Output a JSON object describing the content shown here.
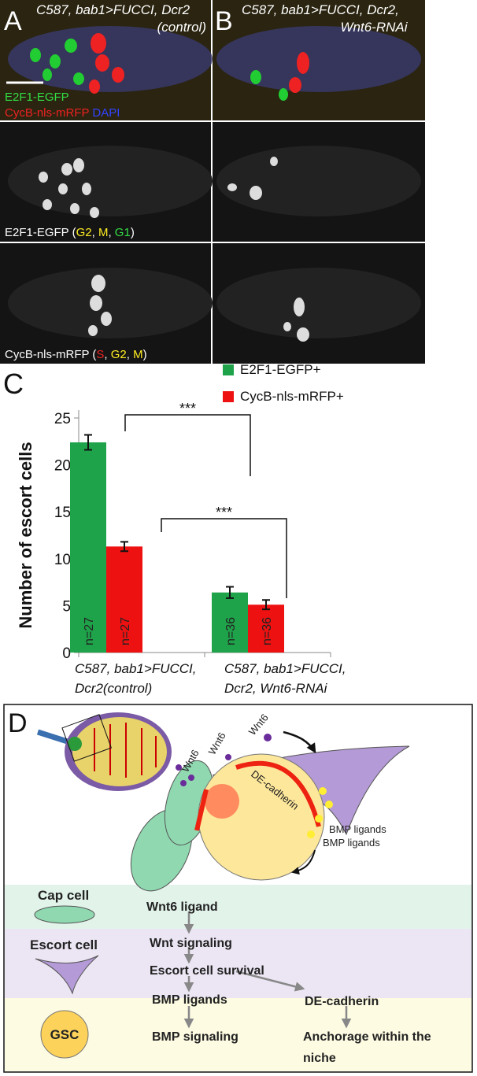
{
  "panel_a": {
    "letter": "A",
    "title": [
      "C587, bab1>FUCCI, Dcr2",
      "(control)"
    ]
  },
  "panel_b": {
    "letter": "B",
    "title": [
      "C587, bab1>FUCCI, Dcr2,",
      "Wnt6-RNAi"
    ]
  },
  "merge_label": [
    "E2F1-EGFP",
    "CycB-nls-mRFP",
    "DAPI"
  ],
  "channel_1_label": [
    "E2F1-EGFP (",
    "G2",
    ", ",
    "M",
    ", ",
    "G1",
    ")"
  ],
  "channel_2_label": [
    "CycB-nls-mRFP (",
    "S",
    ", ",
    "G2",
    ", ",
    "M",
    ")"
  ],
  "chart_data": {
    "type": "bar",
    "panel_letter": "C",
    "ylabel": "Number of escort cells",
    "categories": [
      [
        "C587, bab1>FUCCI,",
        "Dcr2(control)"
      ],
      [
        "C587, bab1>FUCCI,",
        "Dcr2, Wnt6-RNAi"
      ]
    ],
    "series": [
      {
        "name": "E2F1-EGFP+",
        "color": "#1fa34a",
        "values": [
          22.4,
          6.4
        ],
        "errors": [
          0.8,
          0.6
        ],
        "n_labels": [
          "n=27",
          "n=36"
        ]
      },
      {
        "name": "CycB-nls-mRFP+",
        "color": "#ee1111",
        "values": [
          11.3,
          5.1
        ],
        "errors": [
          0.5,
          0.5
        ],
        "n_labels": [
          "n=27",
          "n=36"
        ]
      }
    ],
    "ylim": [
      0,
      25
    ],
    "yticks": [
      0,
      5,
      10,
      15,
      20,
      25
    ],
    "significance": [
      "***",
      "***"
    ]
  },
  "diagram": {
    "letter": "D",
    "wnt6_labels": [
      "Wnt6",
      "Wnt6",
      "Wnt6"
    ],
    "de_cadherin": "DE-cadherin",
    "bmp_labels": [
      "BMP ligands",
      "BMP ligands"
    ],
    "rows": [
      {
        "cell": "Cap cell",
        "steps": [
          "Wnt6 ligand"
        ]
      },
      {
        "cell": "Escort cell",
        "steps": [
          "Wnt signaling",
          "Escort cell survival",
          "BMP ligands",
          "DE-cadherin"
        ]
      },
      {
        "cell": "GSC",
        "steps": [
          "BMP signaling"
        ],
        "outcome": [
          "Anchorage within the",
          "niche"
        ]
      }
    ]
  }
}
